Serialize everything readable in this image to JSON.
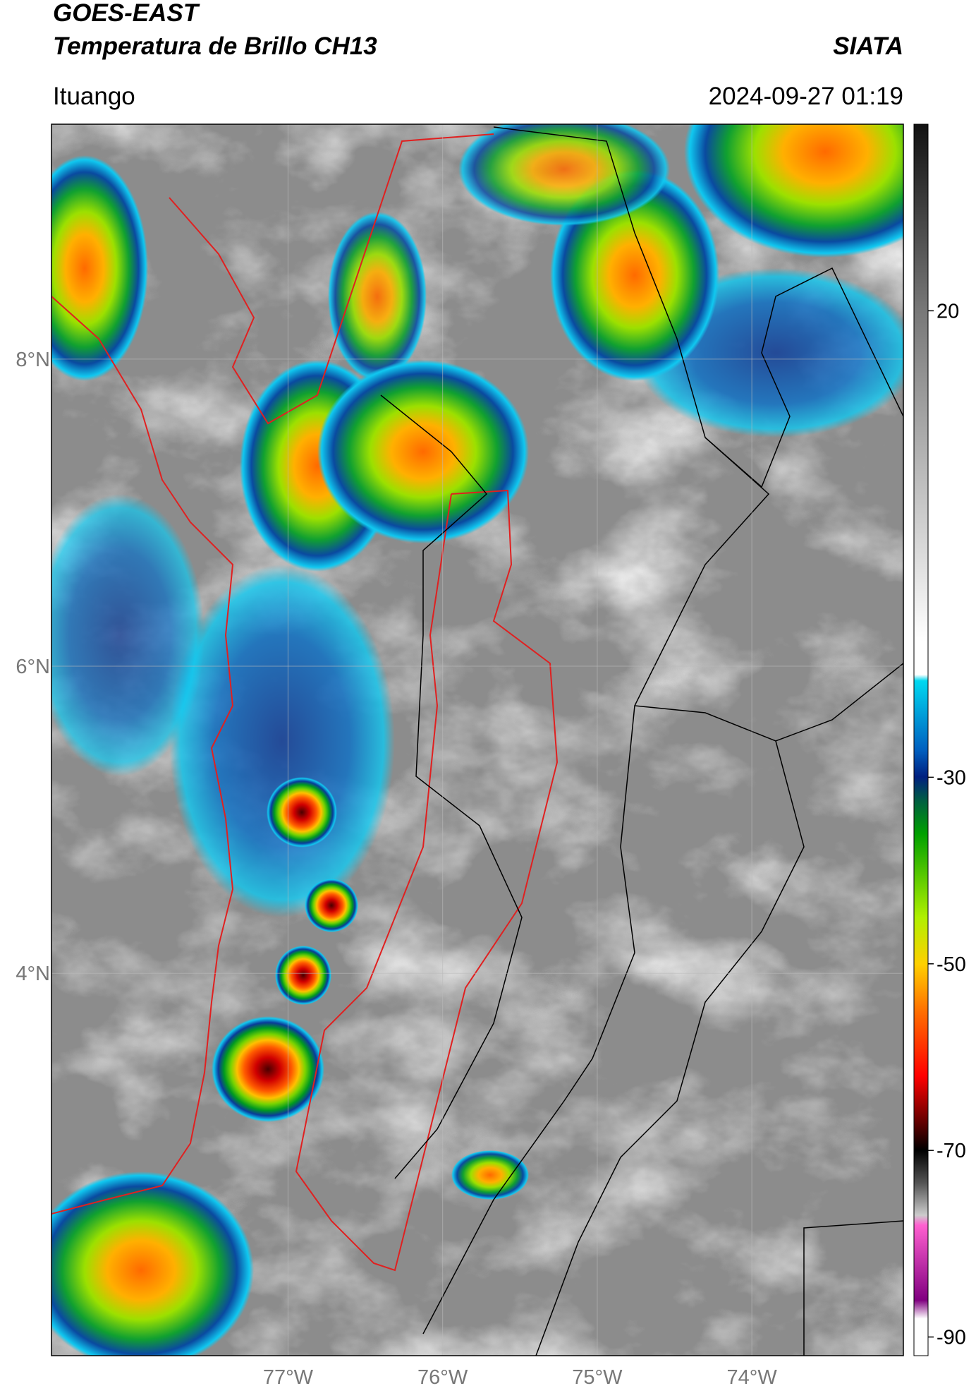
{
  "header": {
    "title": "GOES-EAST",
    "subtitle": "Temperatura de Brillo CH13",
    "source": "SIATA",
    "location": "Ituango",
    "datetime": "2024-09-27 01:19"
  },
  "map": {
    "xlim": [
      -78.53,
      -73.02
    ],
    "ylim": [
      1.51,
      9.53
    ],
    "xticks": [
      {
        "value": -77,
        "label": "77°W"
      },
      {
        "value": -76,
        "label": "76°W"
      },
      {
        "value": -75,
        "label": "75°W"
      },
      {
        "value": -74,
        "label": "74°W"
      }
    ],
    "yticks": [
      {
        "value": 4,
        "label": "4°N"
      },
      {
        "value": 6,
        "label": "6°N"
      },
      {
        "value": 8,
        "label": "8°N"
      }
    ],
    "grid": true
  },
  "colorbar": {
    "lim": [
      -92,
      40
    ],
    "ticks": [
      -90,
      -70,
      -50,
      -30,
      20
    ]
  }
}
